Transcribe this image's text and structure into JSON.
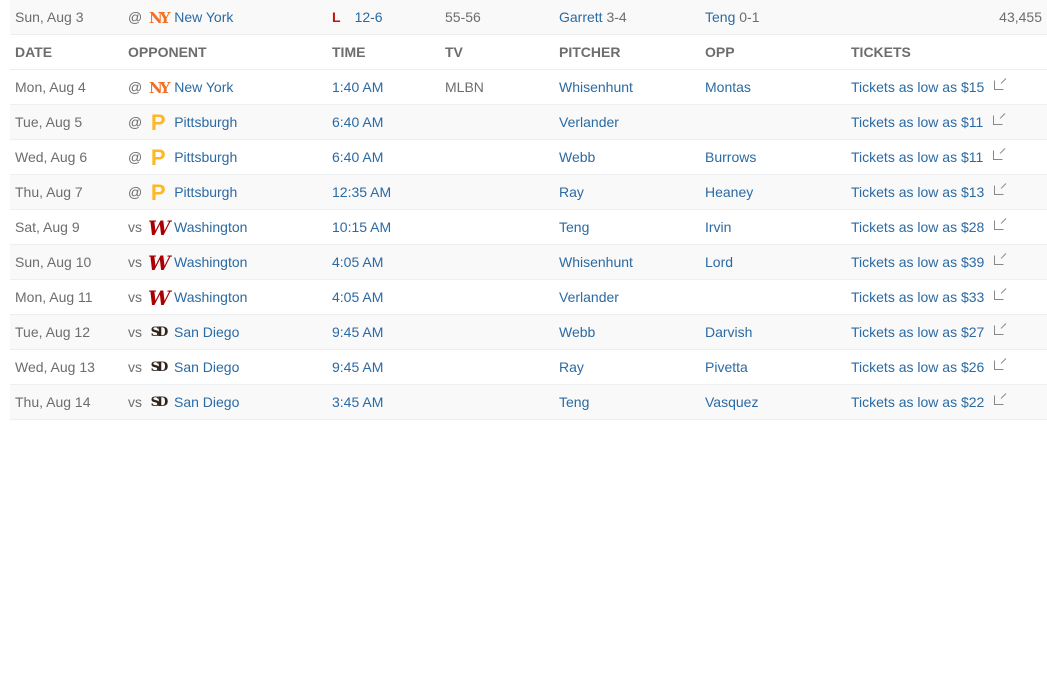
{
  "last_game": {
    "date": "Sun, Aug 3",
    "ha": "@",
    "opponent": "New York",
    "logo": "mets",
    "result": "L",
    "score": "12-6",
    "record": "55-56",
    "win_pitcher": "Garrett",
    "win_record": "3-4",
    "loss_pitcher": "Teng",
    "loss_record": "0-1",
    "attendance": "43,455"
  },
  "headers": {
    "date": "DATE",
    "opponent": "OPPONENT",
    "time": "TIME",
    "tv": "TV",
    "pitcher": "PITCHER",
    "opp": "OPP",
    "tickets": "TICKETS"
  },
  "logos": {
    "mets": {
      "glyph": "NY",
      "color": "#f26e22"
    },
    "pirates": {
      "glyph": "P",
      "color": "#fdb827"
    },
    "nationals": {
      "glyph": "W",
      "color": "#ab0003"
    },
    "padres": {
      "glyph": "SD",
      "color": "#2f241d"
    }
  },
  "games": [
    {
      "date": "Mon, Aug 4",
      "ha": "@",
      "opponent": "New York",
      "logo": "mets",
      "time": "1:40 AM",
      "tv": "MLBN",
      "pitcher": "Whisenhunt",
      "opp": "Montas",
      "tickets": "Tickets as low as $15"
    },
    {
      "date": "Tue, Aug 5",
      "ha": "@",
      "opponent": "Pittsburgh",
      "logo": "pirates",
      "time": "6:40 AM",
      "tv": "",
      "pitcher": "Verlander",
      "opp": "",
      "tickets": "Tickets as low as $11"
    },
    {
      "date": "Wed, Aug 6",
      "ha": "@",
      "opponent": "Pittsburgh",
      "logo": "pirates",
      "time": "6:40 AM",
      "tv": "",
      "pitcher": "Webb",
      "opp": "Burrows",
      "tickets": "Tickets as low as $11"
    },
    {
      "date": "Thu, Aug 7",
      "ha": "@",
      "opponent": "Pittsburgh",
      "logo": "pirates",
      "time": "12:35 AM",
      "tv": "",
      "pitcher": "Ray",
      "opp": "Heaney",
      "tickets": "Tickets as low as $13"
    },
    {
      "date": "Sat, Aug 9",
      "ha": "vs",
      "opponent": "Washington",
      "logo": "nationals",
      "time": "10:15 AM",
      "tv": "",
      "pitcher": "Teng",
      "opp": "Irvin",
      "tickets": "Tickets as low as $28"
    },
    {
      "date": "Sun, Aug 10",
      "ha": "vs",
      "opponent": "Washington",
      "logo": "nationals",
      "time": "4:05 AM",
      "tv": "",
      "pitcher": "Whisenhunt",
      "opp": "Lord",
      "tickets": "Tickets as low as $39"
    },
    {
      "date": "Mon, Aug 11",
      "ha": "vs",
      "opponent": "Washington",
      "logo": "nationals",
      "time": "4:05 AM",
      "tv": "",
      "pitcher": "Verlander",
      "opp": "",
      "tickets": "Tickets as low as $33"
    },
    {
      "date": "Tue, Aug 12",
      "ha": "vs",
      "opponent": "San Diego",
      "logo": "padres",
      "time": "9:45 AM",
      "tv": "",
      "pitcher": "Webb",
      "opp": "Darvish",
      "tickets": "Tickets as low as $27"
    },
    {
      "date": "Wed, Aug 13",
      "ha": "vs",
      "opponent": "San Diego",
      "logo": "padres",
      "time": "9:45 AM",
      "tv": "",
      "pitcher": "Ray",
      "opp": "Pivetta",
      "tickets": "Tickets as low as $26"
    },
    {
      "date": "Thu, Aug 14",
      "ha": "vs",
      "opponent": "San Diego",
      "logo": "padres",
      "time": "3:45 AM",
      "tv": "",
      "pitcher": "Teng",
      "opp": "Vasquez",
      "tickets": "Tickets as low as $22"
    }
  ]
}
